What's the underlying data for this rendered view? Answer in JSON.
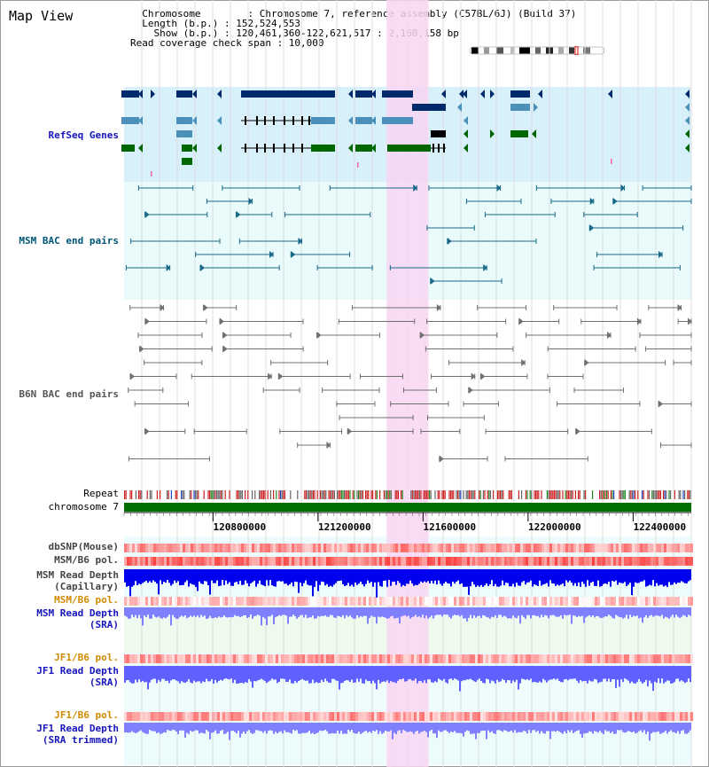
{
  "view": {
    "title": "Map View",
    "info_lines": [
      "  Chromosome        : Chromosome 7, reference assembly (C57BL/6J) (Build 37)",
      "  Length (b.p.) : 152,524,553",
      "    Show (b.p.) : 120,461,360-122,621,517 : 2,160,158 bp",
      "Read coverage check span : 10,000"
    ]
  },
  "region": {
    "start": 120461360,
    "end": 122621517,
    "highlight_start": 121461000,
    "highlight_end": 121621000
  },
  "axis": {
    "ticks": [
      {
        "value": 120800000,
        "label": "120800000"
      },
      {
        "value": 121200000,
        "label": "121200000"
      },
      {
        "value": 121600000,
        "label": "121600000"
      },
      {
        "value": 122000000,
        "label": "122000000"
      },
      {
        "value": 122400000,
        "label": "122400000"
      }
    ]
  },
  "tracks": {
    "refseq": "RefSeq Genes",
    "msm_bac": "MSM BAC end pairs",
    "b6n_bac": "B6N BAC end pairs",
    "repeat": "Repeat",
    "chromosome": "chromosome 7",
    "dbsnp": "dbSNP(Mouse)",
    "msm_b6_pol": "MSM/B6 pol.",
    "msm_read_depth_cap_1": "MSM Read Depth",
    "msm_read_depth_cap_2": "(Capillary)",
    "msm_b6_pol_2": "MSM/B6 pol.",
    "msm_read_depth_sra_1": "MSM Read Depth",
    "msm_read_depth_sra_2": "(SRA)",
    "jf1_b6_pol": "JF1/B6 pol.",
    "jf1_read_depth_sra_1": "JF1 Read Depth",
    "jf1_read_depth_sra_2": "(SRA)",
    "jf1_b6_pol_2": "JF1/B6 pol.",
    "jf1_read_depth_trim_1": "JF1 Read Depth",
    "jf1_read_depth_trim_2": "(SRA trimmed)"
  },
  "colors": {
    "highlight": "#f8d6f2",
    "refseq_bg": "#d8f0fa",
    "msm_bac_bg": "#eafbfb",
    "light_green_bg": "#eefaee",
    "gene_dark": "#002a6a",
    "gene_mid": "#4a90b8",
    "gene_green": "#006600",
    "bac_msm": "#1a6a8a",
    "bac_b6n": "#707070",
    "chromosome": "#007000",
    "depth_blue": "#0000ee",
    "depth_light": "#8080ff",
    "pol_red": "#ff4040"
  }
}
